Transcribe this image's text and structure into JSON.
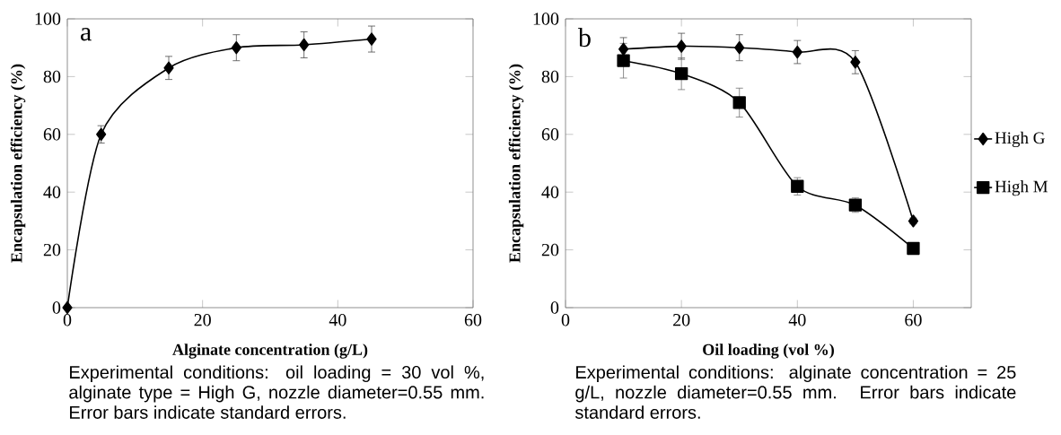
{
  "chart_data": [
    {
      "type": "line",
      "xlabel": "Alginate concentration (g/L)",
      "ylabel": "Encapsulation efficiency (%)",
      "annotations": [
        "a",
        "Experimental conditions: oil loading = 30 vol %, alginate type = High G, nozzle diameter=0.55 mm. Error bars indicate standard errors."
      ],
      "x": [
        0,
        5,
        15,
        25,
        35,
        45
      ],
      "series": [
        {
          "color": "#000000",
          "marker": "diamond",
          "values": [
            0,
            60,
            83,
            90,
            91,
            93
          ],
          "errors": [
            null,
            3,
            4,
            4.5,
            4.5,
            4.5
          ]
        }
      ],
      "xlim": [
        0,
        60
      ],
      "xticks": [
        0,
        20,
        40,
        60
      ],
      "ylim": [
        0,
        100
      ],
      "yticks": [
        0,
        20,
        40,
        60,
        80,
        100
      ],
      "line_style": "solid"
    },
    {
      "type": "line",
      "xlabel": "Oil loading (vol %)",
      "ylabel": "Encapsulation efficiency (%)",
      "annotations": [
        "b",
        "Experimental conditions: alginate concentration = 25 g/L, nozzle diameter=0.55 mm. Error bars indicate standard errors."
      ],
      "x": [
        10,
        20,
        30,
        40,
        50,
        60
      ],
      "series": [
        {
          "name": "High G",
          "color": "#000000",
          "marker": "diamond",
          "values": [
            89.5,
            90.5,
            90,
            88.5,
            85,
            30
          ],
          "errors": [
            4,
            4.5,
            4.5,
            4,
            4,
            1
          ]
        },
        {
          "name": "High M",
          "color": "#000000",
          "marker": "square",
          "values": [
            85.5,
            81,
            71,
            42,
            35.5,
            20.5
          ],
          "errors": [
            6,
            5.5,
            5,
            3,
            2.5,
            1
          ]
        }
      ],
      "xlim": [
        0,
        70
      ],
      "xticks": [
        0,
        20,
        40,
        60
      ],
      "ylim": [
        0,
        100
      ],
      "yticks": [
        0,
        20,
        40,
        60,
        80,
        100
      ],
      "legend": "right",
      "line_style": "solid"
    }
  ]
}
